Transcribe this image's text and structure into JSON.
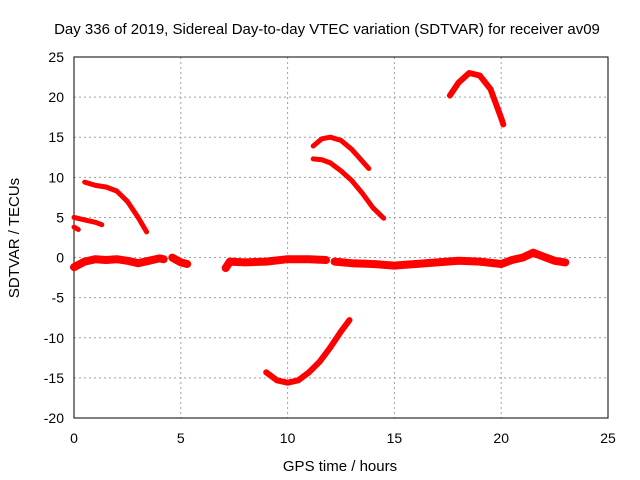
{
  "chart_data": {
    "type": "scatter",
    "title": "Day 336 of 2019, Sidereal Day-to-day VTEC variation (SDTVAR) for receiver av09",
    "xlabel": "GPS time / hours",
    "ylabel": "SDTVAR / TECUs",
    "xlim": [
      0,
      25
    ],
    "ylim": [
      -20,
      25
    ],
    "xticks": [
      0,
      5,
      10,
      15,
      20,
      25
    ],
    "yticks": [
      -20,
      -15,
      -10,
      -5,
      0,
      5,
      10,
      15,
      20,
      25
    ],
    "grid": true,
    "series": [
      {
        "name": "baseline-segment-1",
        "color": "#ff0000",
        "width": 8,
        "points": [
          [
            0,
            -1.2
          ],
          [
            0.5,
            -0.5
          ],
          [
            1,
            -0.2
          ],
          [
            1.5,
            -0.3
          ],
          [
            2,
            -0.2
          ],
          [
            2.5,
            -0.4
          ],
          [
            3,
            -0.7
          ],
          [
            3.5,
            -0.4
          ],
          [
            4,
            -0.1
          ],
          [
            4.2,
            -0.2
          ]
        ]
      },
      {
        "name": "baseline-segment-2",
        "color": "#ff0000",
        "width": 8,
        "points": [
          [
            4.6,
            0.0
          ],
          [
            5.0,
            -0.6
          ],
          [
            5.3,
            -0.8
          ]
        ]
      },
      {
        "name": "baseline-segment-3",
        "color": "#ff0000",
        "width": 8,
        "points": [
          [
            7.1,
            -1.3
          ],
          [
            7.3,
            -0.5
          ],
          [
            8,
            -0.6
          ],
          [
            9,
            -0.5
          ],
          [
            10,
            -0.2
          ],
          [
            11,
            -0.2
          ],
          [
            11.8,
            -0.3
          ]
        ]
      },
      {
        "name": "baseline-segment-4",
        "color": "#ff0000",
        "width": 8,
        "points": [
          [
            12.2,
            -0.5
          ],
          [
            13,
            -0.7
          ],
          [
            14,
            -0.8
          ],
          [
            15,
            -1.0
          ],
          [
            15.5,
            -0.9
          ],
          [
            16,
            -0.8
          ],
          [
            17,
            -0.6
          ],
          [
            18,
            -0.4
          ],
          [
            19,
            -0.5
          ],
          [
            20,
            -0.8
          ],
          [
            20.5,
            -0.3
          ],
          [
            21,
            0.0
          ],
          [
            21.5,
            0.6
          ],
          [
            22,
            0.1
          ],
          [
            22.5,
            -0.4
          ],
          [
            23,
            -0.6
          ]
        ]
      },
      {
        "name": "arc-a",
        "color": "#ff0000",
        "width": 5,
        "points": [
          [
            0,
            3.8
          ],
          [
            0.2,
            3.5
          ]
        ]
      },
      {
        "name": "arc-b",
        "color": "#ff0000",
        "width": 5,
        "points": [
          [
            0,
            5.0
          ],
          [
            0.5,
            4.7
          ],
          [
            1,
            4.4
          ],
          [
            1.3,
            4.1
          ]
        ]
      },
      {
        "name": "arc-c",
        "color": "#ff0000",
        "width": 5,
        "points": [
          [
            0.5,
            9.4
          ],
          [
            1,
            9.0
          ],
          [
            1.5,
            8.8
          ],
          [
            2,
            8.3
          ],
          [
            2.5,
            7.0
          ],
          [
            3,
            5.0
          ],
          [
            3.4,
            3.2
          ]
        ]
      },
      {
        "name": "arc-d",
        "color": "#ff0000",
        "width": 6,
        "points": [
          [
            9,
            -14.3
          ],
          [
            9.5,
            -15.3
          ],
          [
            10,
            -15.6
          ],
          [
            10.5,
            -15.3
          ],
          [
            11,
            -14.3
          ],
          [
            11.5,
            -13.0
          ],
          [
            12,
            -11.2
          ],
          [
            12.5,
            -9.2
          ],
          [
            12.9,
            -7.8
          ]
        ]
      },
      {
        "name": "arc-e",
        "color": "#ff0000",
        "width": 5,
        "points": [
          [
            11.2,
            13.9
          ],
          [
            11.6,
            14.8
          ],
          [
            12,
            15.0
          ],
          [
            12.5,
            14.6
          ],
          [
            13,
            13.5
          ],
          [
            13.5,
            12.0
          ],
          [
            13.8,
            11.1
          ]
        ]
      },
      {
        "name": "arc-f",
        "color": "#ff0000",
        "width": 5,
        "points": [
          [
            11.2,
            12.3
          ],
          [
            11.6,
            12.2
          ],
          [
            12,
            11.8
          ],
          [
            12.5,
            10.8
          ],
          [
            13,
            9.6
          ],
          [
            13.5,
            8.0
          ],
          [
            14,
            6.2
          ],
          [
            14.5,
            4.9
          ]
        ]
      },
      {
        "name": "arc-g",
        "color": "#ff0000",
        "width": 6,
        "points": [
          [
            17.6,
            20.2
          ],
          [
            18,
            21.8
          ],
          [
            18.5,
            23.0
          ],
          [
            19,
            22.7
          ],
          [
            19.5,
            21.0
          ],
          [
            20,
            17.4
          ],
          [
            20.1,
            16.6
          ]
        ]
      }
    ]
  }
}
